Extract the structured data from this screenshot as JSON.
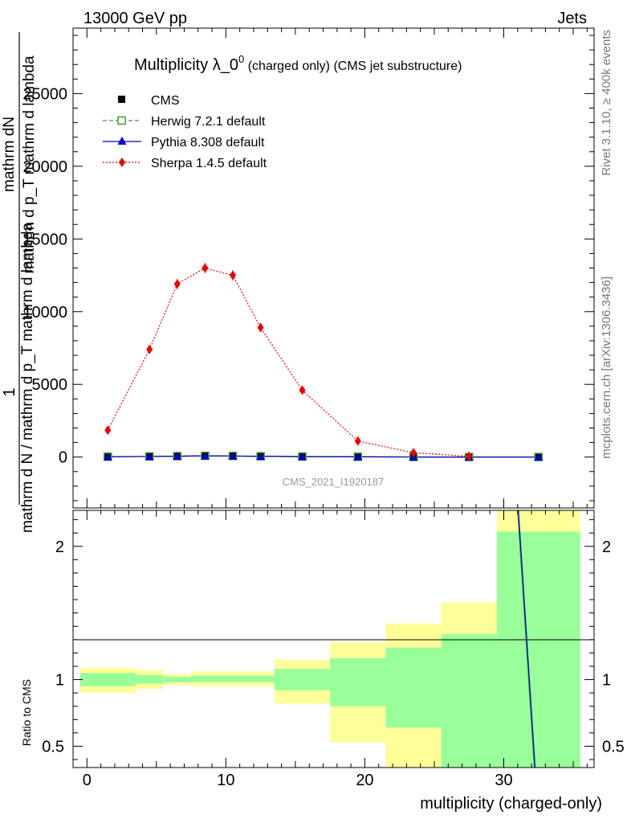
{
  "header": {
    "left": "13000 GeV pp",
    "right": "Jets"
  },
  "side": {
    "rivet": "Rivet 3.1.10, ≥ 400k events",
    "mcplots": "mcplots.cern.ch [arXiv:1306.3436]"
  },
  "chart_data": [
    {
      "type": "line",
      "title_main": "Multiplicity λ_0",
      "title_sup": "0",
      "title_rest": " (charged only) (CMS jet substructure)",
      "watermark": "CMS_2021_I1920187",
      "ylabel_top": "1",
      "ylabel_num": "mathrm dN",
      "ylabel_num_sub": "mathrm d p_T mathrm d lambda",
      "ylabel_den": "mathrm d N / mathrm d p_T mathrm d lambda",
      "ylim": [
        -3500,
        29500
      ],
      "yticks": [
        {
          "v": 0,
          "label": "0"
        },
        {
          "v": 5000,
          "label": "5000"
        },
        {
          "v": 10000,
          "label": "10000"
        },
        {
          "v": 15000,
          "label": "15000"
        },
        {
          "v": 20000,
          "label": "20000"
        },
        {
          "v": 25000,
          "label": "25000"
        }
      ],
      "series": [
        {
          "name": "CMS",
          "color": "#000000",
          "marker": "square",
          "x": [
            1.5,
            4.5,
            6.5,
            8.5,
            10.5,
            12.5,
            15.5,
            19.5,
            23.5,
            27.5,
            32.5
          ],
          "y": [
            20,
            40,
            60,
            80,
            70,
            50,
            30,
            15,
            5,
            2,
            0
          ]
        },
        {
          "name": "Herwig 7.2.1 default",
          "color": "#3f9f2f",
          "marker": "open-square",
          "dash": "5,3",
          "x": [
            1.5,
            4.5,
            6.5,
            8.5,
            10.5,
            12.5,
            15.5,
            19.5,
            23.5,
            27.5,
            32.5
          ],
          "y": [
            25,
            45,
            65,
            85,
            75,
            55,
            35,
            20,
            6,
            2,
            0
          ]
        },
        {
          "name": "Pythia 8.308 default",
          "color": "#0000cc",
          "marker": "triangle",
          "x": [
            1.5,
            4.5,
            6.5,
            8.5,
            10.5,
            12.5,
            15.5,
            19.5,
            23.5,
            27.5,
            32.5
          ],
          "y": [
            20,
            40,
            60,
            80,
            70,
            50,
            30,
            15,
            5,
            2,
            0
          ]
        },
        {
          "name": "Sherpa 1.4.5 default",
          "color": "#ee0000",
          "marker": "diamond",
          "dash": "2,2",
          "x": [
            1.5,
            4.5,
            6.5,
            8.5,
            10.5,
            12.5,
            15.5,
            19.5,
            23.5,
            27.5
          ],
          "y": [
            1850,
            7400,
            11900,
            13000,
            12500,
            8900,
            4600,
            1100,
            300,
            50
          ],
          "err": [
            150,
            250,
            350,
            350,
            350,
            300,
            200,
            100,
            50,
            20
          ]
        }
      ]
    },
    {
      "type": "area",
      "ylabel": "Ratio to CMS",
      "xlabel": "multiplicity (charged-only)",
      "xlim": [
        -1,
        36.5
      ],
      "ylim": [
        0.34,
        2.27
      ],
      "xticks": [
        {
          "v": 0,
          "label": "0"
        },
        {
          "v": 10,
          "label": "10"
        },
        {
          "v": 20,
          "label": "20"
        },
        {
          "v": 30,
          "label": "30"
        }
      ],
      "yticks": [
        {
          "v": 0.5,
          "label": "0.5"
        },
        {
          "v": 1,
          "label": "1"
        },
        {
          "v": 2,
          "label": "2"
        }
      ],
      "bands": [
        {
          "x0": -0.5,
          "x1": 3.5,
          "g_lo": 0.95,
          "g_hi": 1.05,
          "y_lo": 0.9,
          "y_hi": 1.09
        },
        {
          "x0": 3.5,
          "x1": 5.5,
          "g_lo": 0.97,
          "g_hi": 1.035,
          "y_lo": 0.93,
          "y_hi": 1.07
        },
        {
          "x0": 5.5,
          "x1": 7.5,
          "g_lo": 0.98,
          "g_hi": 1.02,
          "y_lo": 0.96,
          "y_hi": 1.04
        },
        {
          "x0": 7.5,
          "x1": 13.5,
          "g_lo": 0.98,
          "g_hi": 1.03,
          "y_lo": 0.95,
          "y_hi": 1.06
        },
        {
          "x0": 13.5,
          "x1": 17.5,
          "g_lo": 0.92,
          "g_hi": 1.08,
          "y_lo": 0.82,
          "y_hi": 1.15
        },
        {
          "x0": 17.5,
          "x1": 21.5,
          "g_lo": 0.8,
          "g_hi": 1.16,
          "y_lo": 0.53,
          "y_hi": 1.28
        },
        {
          "x0": 21.5,
          "x1": 25.5,
          "g_lo": 0.64,
          "g_hi": 1.24,
          "y_lo": 0.34,
          "y_hi": 1.42
        },
        {
          "x0": 25.5,
          "x1": 29.5,
          "g_lo": 0.34,
          "g_hi": 1.34,
          "y_lo": 0.34,
          "y_hi": 1.58
        },
        {
          "x0": 29.5,
          "x1": 35.5,
          "g_lo": 0.34,
          "g_hi": 2.11,
          "y_lo": 0.34,
          "y_hi": 2.27
        }
      ],
      "lines": [
        {
          "name": "Herwig ratio",
          "color": "#3f9f2f",
          "points": [
            [
              31.0,
              2.27
            ],
            [
              32.2,
              0.34
            ]
          ]
        },
        {
          "name": "Pythia ratio",
          "color": "#0000cc",
          "points": [
            [
              31.05,
              2.27
            ],
            [
              32.25,
              0.34
            ]
          ]
        }
      ]
    }
  ]
}
